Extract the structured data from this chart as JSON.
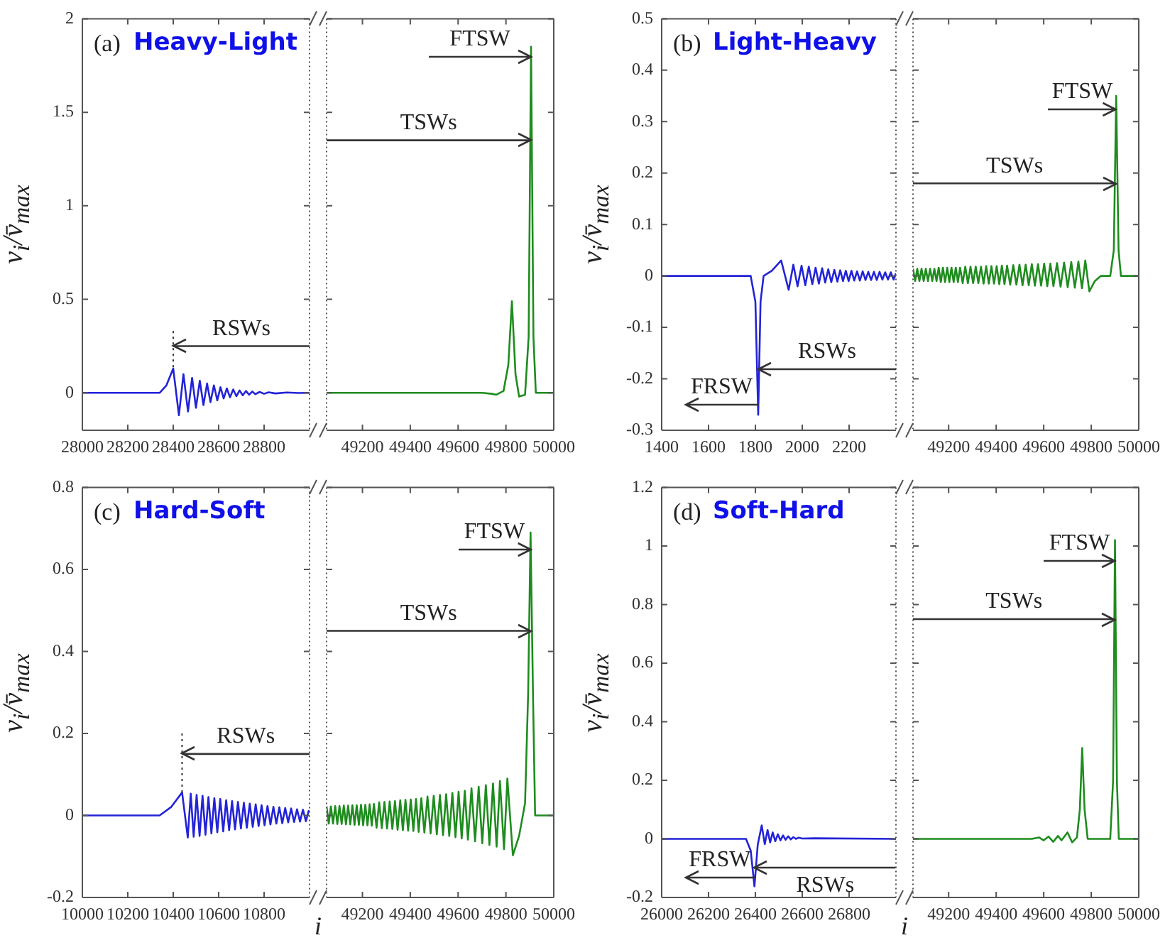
{
  "chart_data": [
    {
      "type": "line",
      "ylabel": "v$_{i}$/v̄$_{max}$",
      "color": "#2323d8",
      "xlim": [
        28000,
        29000
      ],
      "xticks": [
        28000,
        28200,
        28400,
        28600,
        28800
      ],
      "ylim": [
        -0.2,
        2
      ],
      "yticks": [
        0,
        0.5,
        1,
        1.5,
        2
      ],
      "x": [
        28000,
        28340,
        28370,
        28400,
        28425,
        28445,
        28465,
        28483,
        28500,
        28517,
        28533,
        28549,
        28564,
        28579,
        28594,
        28608,
        28622,
        28636,
        28650,
        28664,
        28678,
        28692,
        28706,
        28720,
        28734,
        28748,
        28762,
        28780,
        28800,
        28820,
        28850,
        28900,
        28950,
        29000
      ],
      "values": [
        0,
        0,
        0.04,
        0.13,
        -0.12,
        0.1,
        -0.1,
        0.08,
        -0.08,
        0.065,
        -0.065,
        0.05,
        -0.05,
        0.04,
        -0.04,
        0.03,
        -0.03,
        0.024,
        -0.024,
        0.018,
        -0.018,
        0.013,
        -0.013,
        0.01,
        -0.01,
        0.007,
        -0.007,
        0.005,
        -0.005,
        0.003,
        -0.003,
        0.002,
        -0.001,
        0
      ],
      "ref_lines": [
        {
          "axis": "x",
          "value": 28400,
          "line_style": "dotted"
        },
        {
          "axis": "y",
          "value": 0.25,
          "label": "RSWs"
        }
      ],
      "annotations": [
        "(a)",
        "Heavy-Light"
      ]
    },
    {
      "type": "line",
      "tick_labels": "x",
      "color": "#1e8c1e",
      "xlim": [
        49050,
        50000
      ],
      "xticks": [
        49200,
        49400,
        49600,
        49800,
        50000
      ],
      "ylim": [
        -0.2,
        2
      ],
      "yticks": [
        0,
        0.5,
        1,
        1.5,
        2
      ],
      "x": [
        49050,
        49700,
        49740,
        49760,
        49790,
        49810,
        49825,
        49840,
        49855,
        49880,
        49895,
        49905,
        49915,
        49925,
        50000
      ],
      "values": [
        0,
        0,
        -0.005,
        -0.01,
        0.01,
        0.15,
        0.49,
        0.1,
        -0.02,
        -0.01,
        0.3,
        1.85,
        0.3,
        0,
        0
      ],
      "ref_lines": [
        {
          "axis": "y",
          "value": 1.35,
          "label": "TSWs"
        }
      ],
      "annotations": [
        {
          "text": "FTSW",
          "x": 49905,
          "y": 1.8
        }
      ]
    },
    {
      "type": "line",
      "ylabel": "v$_{i}$/v̄$_{max}$",
      "color": "#2323d8",
      "xlim": [
        1400,
        2400
      ],
      "xticks": [
        1400,
        1600,
        1800,
        2000,
        2200
      ],
      "ylim": [
        -0.3,
        0.5
      ],
      "yticks": [
        -0.3,
        -0.2,
        -0.1,
        0,
        0.1,
        0.2,
        0.3,
        0.4,
        0.5
      ],
      "x": [
        1400,
        1780,
        1800,
        1812,
        1822,
        1835,
        1870,
        1910,
        1942,
        1962,
        1980,
        1997,
        2013,
        2028,
        2043,
        2057,
        2071,
        2085,
        2098,
        2111,
        2124,
        2137,
        2150,
        2162,
        2174,
        2186,
        2198,
        2210,
        2222,
        2234,
        2246,
        2258,
        2270,
        2282,
        2294,
        2306,
        2318,
        2330,
        2342,
        2354,
        2366,
        2378,
        2390,
        2400
      ],
      "values": [
        0,
        0,
        -0.05,
        -0.27,
        -0.05,
        0,
        0.01,
        0.03,
        -0.027,
        0.022,
        -0.02,
        0.02,
        -0.018,
        0.018,
        -0.016,
        0.016,
        -0.015,
        0.015,
        -0.013,
        0.013,
        -0.012,
        0.012,
        -0.011,
        0.011,
        -0.01,
        0.01,
        -0.01,
        0.01,
        -0.009,
        0.009,
        -0.009,
        0.009,
        -0.008,
        0.008,
        -0.008,
        0.008,
        -0.008,
        0.008,
        -0.007,
        0.007,
        -0.007,
        0.007,
        -0.007,
        0.005
      ],
      "annotations": [
        "(b)",
        "Light-Heavy",
        {
          "text": "RSWs",
          "x": 1812,
          "y": -0.18
        },
        {
          "text": "FRSW",
          "x": 1812,
          "y": -0.25
        }
      ]
    },
    {
      "type": "line",
      "tick_labels": "x",
      "color": "#1e8c1e",
      "xlim": [
        49050,
        50000
      ],
      "xticks": [
        49200,
        49400,
        49600,
        49800,
        50000
      ],
      "ylim": [
        -0.3,
        0.5
      ],
      "yticks": [
        -0.3,
        -0.2,
        -0.1,
        0,
        0.1,
        0.2,
        0.3,
        0.4,
        0.5
      ],
      "x": [
        49050,
        49059,
        49068,
        49077,
        49086,
        49095,
        49104,
        49113,
        49122,
        49131,
        49140,
        49149,
        49158,
        49167,
        49176,
        49185,
        49194,
        49203,
        49212,
        49221,
        49230,
        49239,
        49248,
        49259,
        49270,
        49281,
        49292,
        49303,
        49314,
        49325,
        49336,
        49347,
        49358,
        49369,
        49380,
        49391,
        49402,
        49413,
        49424,
        49435,
        49446,
        49459,
        49472,
        49485,
        49498,
        49511,
        49524,
        49537,
        49550,
        49563,
        49576,
        49589,
        49602,
        49615,
        49628,
        49641,
        49656,
        49671,
        49686,
        49701,
        49716,
        49731,
        49746,
        49761,
        49775,
        49792,
        49815,
        49840,
        49880,
        49895,
        49905,
        49915,
        49925,
        50000
      ],
      "values": [
        0.014,
        -0.01,
        0.014,
        -0.01,
        0.014,
        -0.01,
        0.014,
        -0.01,
        0.014,
        -0.01,
        0.014,
        -0.01,
        0.016,
        -0.012,
        0.016,
        -0.012,
        0.016,
        -0.012,
        0.016,
        -0.012,
        0.016,
        -0.012,
        0.016,
        -0.014,
        0.018,
        -0.014,
        0.018,
        -0.014,
        0.018,
        -0.014,
        0.018,
        -0.015,
        0.019,
        -0.015,
        0.019,
        -0.015,
        0.019,
        -0.016,
        0.02,
        -0.016,
        0.02,
        -0.017,
        0.021,
        -0.017,
        0.022,
        -0.018,
        0.022,
        -0.018,
        0.023,
        -0.019,
        0.023,
        -0.019,
        0.024,
        -0.02,
        0.024,
        -0.02,
        0.025,
        -0.021,
        0.026,
        -0.022,
        0.027,
        -0.023,
        0.028,
        -0.024,
        0.03,
        -0.03,
        -0.01,
        0,
        0,
        0.05,
        0.35,
        0.05,
        0,
        0
      ],
      "ref_lines": [
        {
          "axis": "y",
          "value": 0.18,
          "label": "TSWs"
        }
      ],
      "annotations": [
        {
          "text": "FTSW",
          "x": 49905,
          "y": 0.325
        }
      ]
    },
    {
      "type": "line",
      "ylabel": "v$_{i}$/v̄$_{max}$",
      "xlabel": "i",
      "color": "#2323d8",
      "xlim": [
        10000,
        11000
      ],
      "xticks": [
        10000,
        10200,
        10400,
        10600,
        10800
      ],
      "ylim": [
        -0.2,
        0.8
      ],
      "yticks": [
        -0.2,
        0,
        0.2,
        0.4,
        0.6,
        0.8
      ],
      "x": [
        10000,
        10340,
        10390,
        10439,
        10464,
        10477,
        10490,
        10503,
        10516,
        10529,
        10542,
        10555,
        10568,
        10581,
        10594,
        10607,
        10620,
        10633,
        10646,
        10659,
        10672,
        10685,
        10698,
        10711,
        10724,
        10737,
        10750,
        10763,
        10776,
        10789,
        10802,
        10815,
        10828,
        10841,
        10854,
        10867,
        10880,
        10893,
        10906,
        10919,
        10932,
        10945,
        10958,
        10971,
        10984,
        10997
      ],
      "values": [
        0,
        0,
        0.02,
        0.056,
        -0.054,
        0.053,
        -0.052,
        0.05,
        -0.05,
        0.048,
        -0.047,
        0.045,
        -0.044,
        0.042,
        -0.041,
        0.04,
        -0.039,
        0.037,
        -0.036,
        0.035,
        -0.034,
        0.033,
        -0.032,
        0.031,
        -0.03,
        0.029,
        -0.028,
        0.027,
        -0.026,
        0.025,
        -0.024,
        0.023,
        -0.022,
        0.021,
        -0.02,
        0.02,
        -0.019,
        0.018,
        -0.017,
        0.017,
        -0.016,
        0.015,
        -0.015,
        0.014,
        -0.014,
        0.013
      ],
      "ref_lines": [
        {
          "axis": "x",
          "value": 10439,
          "line_style": "dotted"
        },
        {
          "axis": "y",
          "value": 0.15,
          "label": "RSWs"
        }
      ],
      "annotations": [
        "(c)",
        "Hard-Soft"
      ]
    },
    {
      "type": "line",
      "tick_labels": "x",
      "color": "#1e8c1e",
      "xlim": [
        49050,
        50000
      ],
      "xticks": [
        49200,
        49400,
        49600,
        49800,
        50000
      ],
      "ylim": [
        -0.2,
        0.8
      ],
      "yticks": [
        -0.2,
        0,
        0.2,
        0.4,
        0.6,
        0.8
      ],
      "x": [
        49050,
        49059,
        49068,
        49077,
        49086,
        49095,
        49104,
        49113,
        49122,
        49131,
        49140,
        49149,
        49158,
        49167,
        49176,
        49185,
        49194,
        49203,
        49212,
        49221,
        49230,
        49239,
        49248,
        49259,
        49270,
        49281,
        49292,
        49303,
        49314,
        49325,
        49336,
        49347,
        49358,
        49369,
        49380,
        49391,
        49402,
        49413,
        49424,
        49435,
        49446,
        49459,
        49472,
        49485,
        49498,
        49511,
        49524,
        49537,
        49550,
        49563,
        49576,
        49589,
        49602,
        49615,
        49628,
        49641,
        49656,
        49671,
        49686,
        49701,
        49716,
        49731,
        49746,
        49761,
        49775,
        49792,
        49806,
        49829,
        49855,
        49880,
        49893,
        49903,
        49913,
        49922,
        50000
      ],
      "values": [
        0.022,
        -0.02,
        0.022,
        -0.02,
        0.023,
        -0.021,
        0.023,
        -0.021,
        0.024,
        -0.022,
        0.024,
        -0.022,
        0.025,
        -0.023,
        0.025,
        -0.023,
        0.026,
        -0.024,
        0.026,
        -0.024,
        0.027,
        -0.025,
        0.028,
        -0.03,
        0.032,
        -0.031,
        0.033,
        -0.032,
        0.034,
        -0.033,
        0.035,
        -0.035,
        0.037,
        -0.036,
        0.038,
        -0.037,
        0.039,
        -0.038,
        0.04,
        -0.04,
        0.042,
        -0.042,
        0.046,
        -0.044,
        0.048,
        -0.046,
        0.05,
        -0.048,
        0.052,
        -0.05,
        0.055,
        -0.053,
        0.058,
        -0.056,
        0.06,
        -0.059,
        0.066,
        -0.063,
        0.07,
        -0.068,
        0.074,
        -0.072,
        0.078,
        -0.076,
        0.084,
        -0.082,
        0.09,
        -0.097,
        -0.05,
        0.03,
        0.3,
        0.69,
        0.3,
        0,
        0
      ],
      "ref_lines": [
        {
          "axis": "y",
          "value": 0.45,
          "label": "TSWs"
        }
      ],
      "annotations": [
        {
          "text": "FTSW",
          "x": 49903,
          "y": 0.65
        }
      ]
    },
    {
      "type": "line",
      "ylabel": "v$_{i}$/v̄$_{max}$",
      "xlabel": "i",
      "color": "#2323d8",
      "xlim": [
        26000,
        27000
      ],
      "xticks": [
        26000,
        26200,
        26400,
        26600,
        26800
      ],
      "ylim": [
        -0.2,
        1.2
      ],
      "yticks": [
        -0.2,
        0,
        0.2,
        0.4,
        0.6,
        0.8,
        1,
        1.2
      ],
      "x": [
        26000,
        26360,
        26380,
        26396,
        26410,
        26427,
        26440,
        26452,
        26463,
        26474,
        26485,
        26496,
        26507,
        26518,
        26529,
        26540,
        26551,
        26562,
        26573,
        26584,
        26600,
        26650,
        27000
      ],
      "values": [
        0,
        0,
        -0.04,
        -0.162,
        -0.02,
        0.046,
        -0.018,
        0.03,
        -0.012,
        0.022,
        -0.008,
        0.016,
        -0.005,
        0.012,
        -0.003,
        0.009,
        -0.002,
        0.006,
        0,
        0.004,
        0.001,
        0.002,
        0
      ],
      "annotations": [
        "(d)",
        "Soft-Hard",
        {
          "text": "RSWs",
          "x": 26396,
          "y": -0.1
        },
        {
          "text": "FRSW",
          "x": 26396,
          "y": -0.13
        }
      ]
    },
    {
      "type": "line",
      "tick_labels": "x",
      "color": "#1e8c1e",
      "xlim": [
        49050,
        50000
      ],
      "xticks": [
        49200,
        49400,
        49600,
        49800,
        50000
      ],
      "ylim": [
        -0.2,
        1.2
      ],
      "yticks": [
        -0.2,
        0,
        0.2,
        0.4,
        0.6,
        0.8,
        1,
        1.2
      ],
      "x": [
        49050,
        49550,
        49580,
        49600,
        49620,
        49640,
        49660,
        49675,
        49700,
        49720,
        49740,
        49752,
        49762,
        49772,
        49785,
        49880,
        49892,
        49900,
        49908,
        49916,
        50000
      ],
      "values": [
        0,
        0,
        0.005,
        -0.005,
        0.008,
        -0.01,
        0.01,
        -0.005,
        0.022,
        -0.012,
        0.005,
        0.1,
        0.31,
        0.1,
        0,
        0,
        0.2,
        1.02,
        0.2,
        0,
        0
      ],
      "ref_lines": [
        {
          "axis": "y",
          "value": 0.75,
          "label": "TSWs"
        }
      ],
      "annotations": [
        {
          "text": "FTSW",
          "x": 49900,
          "y": 0.95
        }
      ]
    }
  ]
}
